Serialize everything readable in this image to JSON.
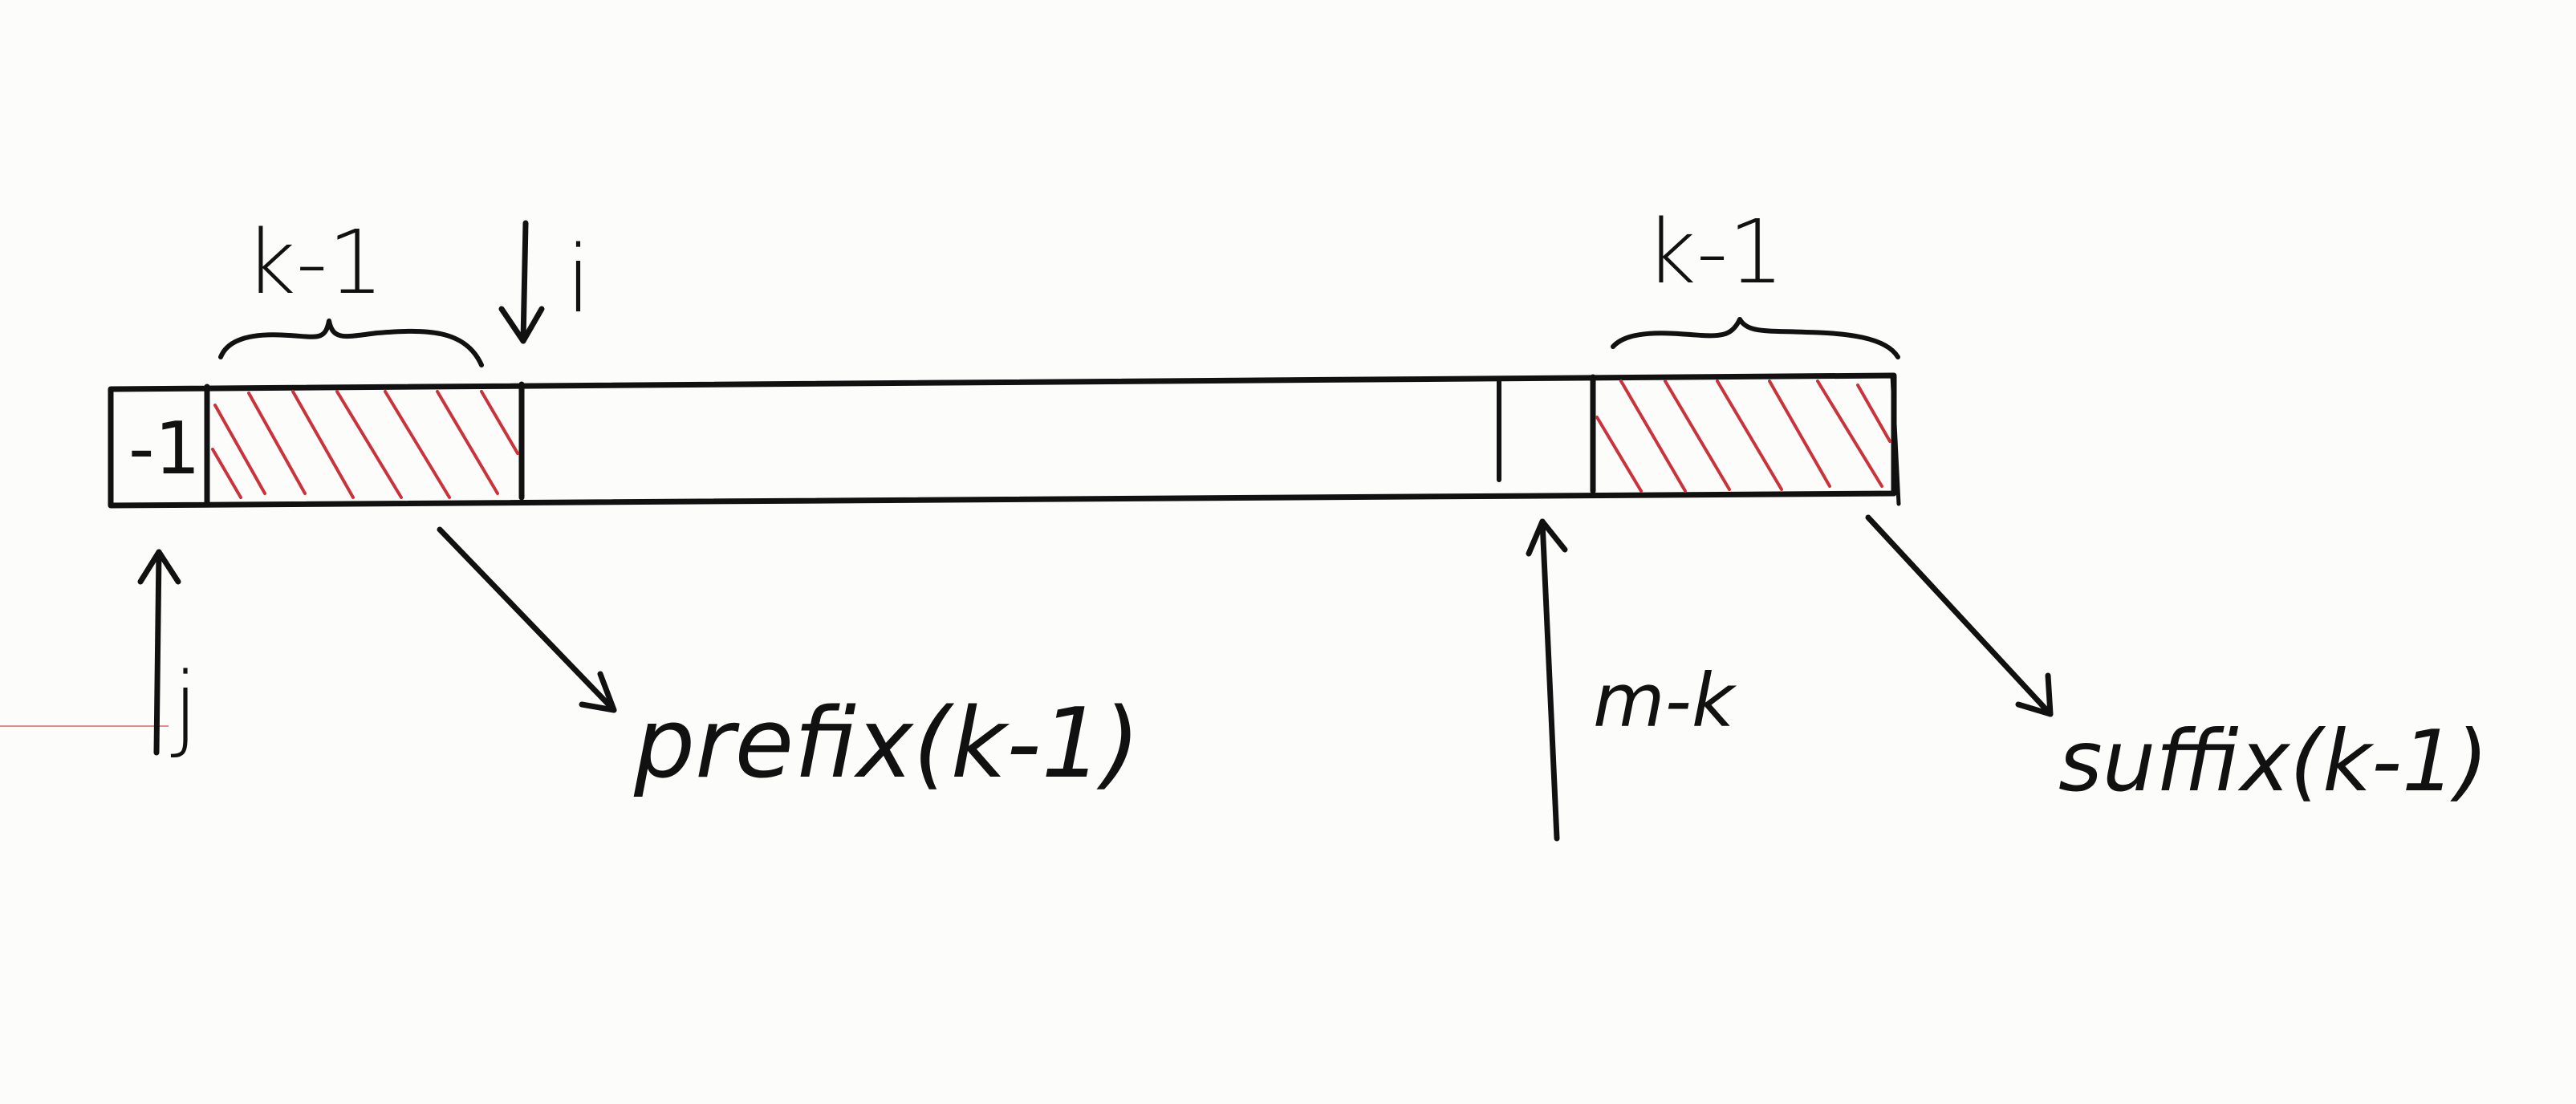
{
  "diagram": {
    "labels": {
      "minus_one_cell": "-1",
      "prefix_length": "k-1",
      "suffix_length": "k-1",
      "pointer_i": "i",
      "pointer_j": "j",
      "pointer_mk": "m-k",
      "prefix_label": "prefix(k-1)",
      "suffix_label": "suffix(k-1)"
    },
    "colors": {
      "ink": "#111111",
      "hatch": "#c9343c",
      "paper": "#fcfcfa",
      "margin_line": "#e58a8a"
    }
  }
}
